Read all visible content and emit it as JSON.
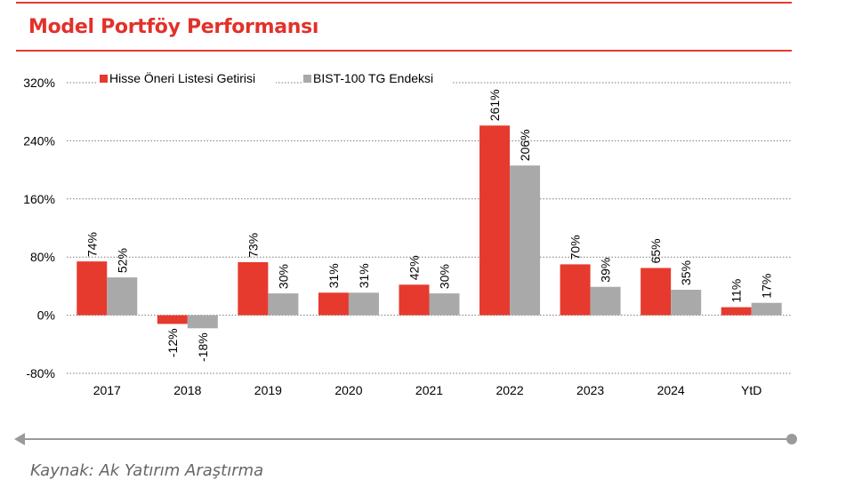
{
  "header": {
    "title": "Model Portföy Performansı"
  },
  "footer": {
    "source": "Kaynak: Ak Yatırım Araştırma"
  },
  "chart_data": {
    "type": "bar",
    "title": "",
    "xlabel": "",
    "ylabel": "",
    "categories": [
      "2017",
      "2018",
      "2019",
      "2020",
      "2021",
      "2022",
      "2023",
      "2024",
      "YtD"
    ],
    "series": [
      {
        "name": "Hisse Öneri Listesi Getirisi",
        "color": "#e63a2e",
        "values": [
          74,
          -12,
          73,
          31,
          42,
          261,
          70,
          65,
          11
        ],
        "labels": [
          "74%",
          "-12%",
          "73%",
          "31%",
          "42%",
          "261%",
          "70%",
          "65%",
          "11%"
        ]
      },
      {
        "name": "BIST-100 TG Endeksi",
        "color": "#a9a9a9",
        "values": [
          52,
          -18,
          30,
          31,
          30,
          206,
          39,
          35,
          17
        ],
        "labels": [
          "52%",
          "-18%",
          "30%",
          "31%",
          "30%",
          "206%",
          "39%",
          "35%",
          "17%"
        ]
      }
    ],
    "ylim": [
      -80,
      320
    ],
    "yticks": [
      {
        "value": 320,
        "label": "320%"
      },
      {
        "value": 240,
        "label": "240%"
      },
      {
        "value": 160,
        "label": "160%"
      },
      {
        "value": 80,
        "label": "80%"
      },
      {
        "value": 0,
        "label": "0%"
      },
      {
        "value": -80,
        "label": "-80%"
      }
    ],
    "grid": true,
    "legend_position": "top-left"
  }
}
